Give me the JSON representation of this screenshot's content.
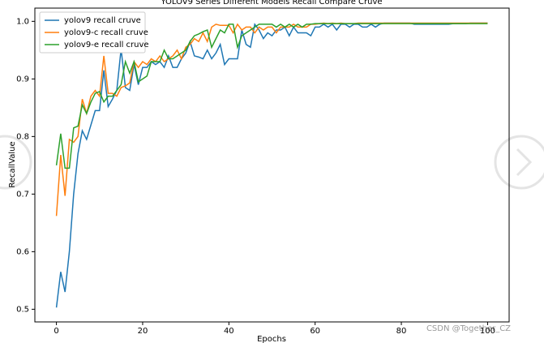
{
  "chart_data": {
    "type": "line",
    "title": "YOLOV9 Series Different Models Recall Compare Cruve",
    "x_label": "Epochs",
    "y_label": "RecallValue",
    "watermark": "CSDN @Together_CZ",
    "legend": "upper left",
    "x": [
      0,
      1,
      2,
      3,
      4,
      5,
      6,
      7,
      8,
      9,
      10,
      11,
      12,
      13,
      14,
      15,
      16,
      17,
      18,
      19,
      20,
      21,
      22,
      23,
      24,
      25,
      26,
      27,
      28,
      29,
      30,
      31,
      32,
      33,
      34,
      35,
      36,
      37,
      38,
      39,
      40,
      41,
      42,
      43,
      44,
      45,
      46,
      47,
      48,
      49,
      50,
      51,
      52,
      53,
      54,
      55,
      56,
      57,
      58,
      59,
      60,
      61,
      62,
      63,
      64,
      65,
      66,
      67,
      68,
      69,
      70,
      71,
      72,
      73,
      74,
      75,
      76,
      77,
      78,
      79,
      80,
      81,
      82,
      83,
      84,
      85,
      86,
      87,
      88,
      89,
      90,
      91,
      92,
      93,
      94,
      95,
      96,
      97,
      98,
      99,
      100
    ],
    "series": [
      {
        "name": "yolov9 recall cruve",
        "color": "#1f77b4",
        "values": [
          0.503,
          0.565,
          0.53,
          0.6,
          0.7,
          0.77,
          0.81,
          0.795,
          0.82,
          0.845,
          0.845,
          0.915,
          0.852,
          0.865,
          0.88,
          0.952,
          0.885,
          0.88,
          0.925,
          0.89,
          0.92,
          0.92,
          0.93,
          0.925,
          0.93,
          0.92,
          0.94,
          0.92,
          0.92,
          0.935,
          0.945,
          0.965,
          0.94,
          0.938,
          0.935,
          0.95,
          0.935,
          0.945,
          0.96,
          0.925,
          0.935,
          0.935,
          0.935,
          0.985,
          0.96,
          0.955,
          0.995,
          0.985,
          0.97,
          0.98,
          0.975,
          0.985,
          0.985,
          0.99,
          0.975,
          0.99,
          0.98,
          0.98,
          0.98,
          0.975,
          0.99,
          0.99,
          0.995,
          0.99,
          0.995,
          0.985,
          0.995,
          0.995,
          0.99,
          0.995,
          0.995,
          0.99,
          0.99,
          0.995,
          0.99,
          0.995,
          0.997,
          0.997,
          0.997,
          0.997,
          0.997,
          0.997,
          0.997,
          0.995,
          0.995,
          0.995,
          0.995,
          0.995,
          0.995,
          0.995,
          0.995,
          0.995,
          0.996,
          0.996,
          0.996,
          0.996,
          0.997,
          0.997,
          0.997,
          0.997,
          0.997
        ]
      },
      {
        "name": "yolov9-c recall cruve",
        "color": "#ff7f0e",
        "values": [
          0.662,
          0.768,
          0.697,
          0.795,
          0.79,
          0.8,
          0.865,
          0.84,
          0.87,
          0.88,
          0.87,
          0.94,
          0.875,
          0.875,
          0.87,
          0.885,
          0.888,
          0.893,
          0.93,
          0.92,
          0.93,
          0.925,
          0.935,
          0.93,
          0.94,
          0.93,
          0.935,
          0.94,
          0.95,
          0.935,
          0.955,
          0.96,
          0.97,
          0.965,
          0.98,
          0.965,
          0.99,
          0.995,
          0.993,
          0.993,
          0.993,
          0.98,
          0.995,
          0.985,
          0.99,
          0.99,
          0.98,
          0.99,
          0.985,
          0.99,
          0.99,
          0.98,
          0.99,
          0.99,
          0.99,
          0.995,
          0.99,
          0.99,
          0.99,
          0.995,
          0.995,
          0.996,
          0.997,
          0.996,
          0.997,
          0.996,
          0.997,
          0.996,
          0.996,
          0.996,
          0.997,
          0.997,
          0.997,
          0.997,
          0.997,
          0.997,
          0.997,
          0.997,
          0.997,
          0.997,
          0.997,
          0.997,
          0.997,
          0.997,
          0.997,
          0.997,
          0.997,
          0.997,
          0.997,
          0.997,
          0.997,
          0.997,
          0.997,
          0.997,
          0.997,
          0.997,
          0.997,
          0.997,
          0.997,
          0.997,
          0.997
        ]
      },
      {
        "name": "yolov9-e recall cruve",
        "color": "#2ca02c",
        "values": [
          0.75,
          0.805,
          0.745,
          0.745,
          0.815,
          0.818,
          0.855,
          0.84,
          0.86,
          0.875,
          0.878,
          0.86,
          0.87,
          0.87,
          0.88,
          0.89,
          0.93,
          0.91,
          0.93,
          0.895,
          0.9,
          0.905,
          0.93,
          0.93,
          0.93,
          0.95,
          0.935,
          0.935,
          0.94,
          0.945,
          0.95,
          0.965,
          0.975,
          0.978,
          0.982,
          0.985,
          0.955,
          0.97,
          0.985,
          0.98,
          0.995,
          0.995,
          0.955,
          0.975,
          0.98,
          0.985,
          0.99,
          0.995,
          0.995,
          0.995,
          0.995,
          0.99,
          0.995,
          0.99,
          0.995,
          0.99,
          0.995,
          0.99,
          0.995,
          0.995,
          0.996,
          0.996,
          0.996,
          0.996,
          0.996,
          0.996,
          0.996,
          0.996,
          0.996,
          0.996,
          0.996,
          0.996,
          0.996,
          0.996,
          0.996,
          0.996,
          0.996,
          0.996,
          0.996,
          0.996,
          0.996,
          0.996,
          0.996,
          0.996,
          0.996,
          0.996,
          0.996,
          0.996,
          0.996,
          0.996,
          0.996,
          0.996,
          0.996,
          0.996,
          0.996,
          0.996,
          0.996,
          0.996,
          0.996,
          0.996,
          0.996
        ]
      }
    ],
    "xlim": [
      -5,
      105
    ],
    "ylim": [
      0.478,
      1.023
    ],
    "xticks": [
      0,
      20,
      40,
      60,
      80,
      100
    ],
    "yticks": [
      0.5,
      0.6,
      0.7,
      0.8,
      0.9,
      {
        "value": 1,
        "label": "1.0"
      }
    ]
  }
}
